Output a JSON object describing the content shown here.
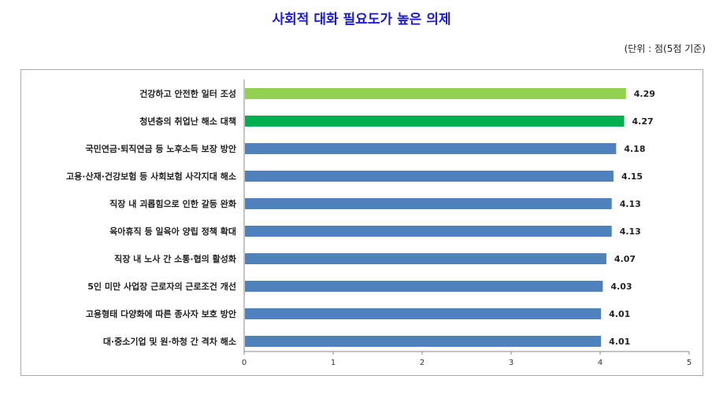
{
  "chart_data": {
    "type": "bar",
    "orientation": "horizontal",
    "title": "사회적 대화 필요도가 높은 의제",
    "unit_note": "(단위 : 점(5점 기준)",
    "categories": [
      "건강하고 안전한 일터 조성",
      "청년층의 취업난 해소 대책",
      "국민연금·퇴직연금 등 노후소득 보장 방안",
      "고용·산재·건강보험 등 사회보험 사각지대 해소",
      "직장 내 괴롭힘으로 인한 갈등 완화",
      "육아휴직 등 일육아 양립 정책 확대",
      "직장 내 노사 간 소통·협의 활성화",
      "5인 미만 사업장 근로자의 근로조건 개선",
      "고용형태 다양화에 따른 종사자 보호 방안",
      "대·중소기업 및 원·하청 간 격차 해소"
    ],
    "values": [
      4.29,
      4.27,
      4.18,
      4.15,
      4.13,
      4.13,
      4.07,
      4.03,
      4.01,
      4.01
    ],
    "value_labels": [
      "4.29",
      "4.27",
      "4.18",
      "4.15",
      "4.13",
      "4.13",
      "4.07",
      "4.03",
      "4.01",
      "4.01"
    ],
    "bar_colors": [
      "#92d050",
      "#00b050",
      "#4f81bd",
      "#4f81bd",
      "#4f81bd",
      "#4f81bd",
      "#4f81bd",
      "#4f81bd",
      "#4f81bd",
      "#4f81bd"
    ],
    "xlim": [
      0,
      5
    ],
    "xticks": [
      "0",
      "1",
      "2",
      "3",
      "4",
      "5"
    ],
    "grid": false,
    "legend": "none"
  }
}
